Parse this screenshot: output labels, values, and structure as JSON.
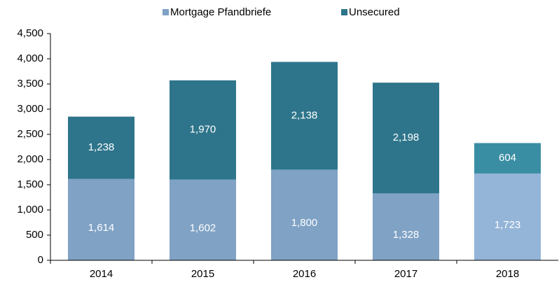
{
  "chart_data": {
    "type": "stacked_bar",
    "categories": [
      "2014",
      "2015",
      "2016",
      "2017",
      "2018"
    ],
    "series": [
      {
        "name": "Mortgage Pfandbriefe",
        "color": "#7fa2c5",
        "colors": [
          "#7fa2c5",
          "#7fa2c5",
          "#7fa2c5",
          "#7fa2c5",
          "#94b4d8"
        ],
        "values": [
          1614,
          1602,
          1800,
          1328,
          1723
        ],
        "value_labels": [
          "1,614",
          "1,602",
          "1,800",
          "1,328",
          "1,723"
        ]
      },
      {
        "name": "Unsecured",
        "color": "#2e758b",
        "colors": [
          "#2e758b",
          "#2e758b",
          "#2e758b",
          "#2e758b",
          "#3a8ea3"
        ],
        "values": [
          1238,
          1970,
          2138,
          2198,
          604
        ],
        "value_labels": [
          "1,238",
          "1,970",
          "2,138",
          "2,198",
          "604"
        ]
      }
    ],
    "ylim": [
      0,
      4500
    ],
    "yticks": [
      0,
      500,
      {
        "value": 1000,
        "label": "1,000"
      },
      {
        "value": 1500,
        "label": "1,500"
      },
      {
        "value": 2000,
        "label": "2,000"
      },
      {
        "value": 2500,
        "label": "2,500"
      },
      {
        "value": 3000,
        "label": "3,000"
      },
      {
        "value": 3500,
        "label": "3,500"
      },
      {
        "value": 4000,
        "label": "4,000"
      },
      {
        "value": 4500,
        "label": "4,500"
      }
    ],
    "legend": "top"
  }
}
